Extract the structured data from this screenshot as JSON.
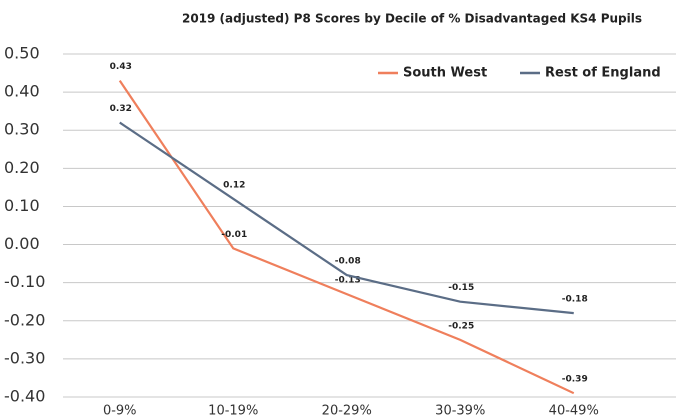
{
  "chart_data": {
    "type": "line",
    "title": "2019 (adjusted) P8 Scores by Decile of % Disadvantaged KS4 Pupils",
    "categories": [
      "0-9%",
      "10-19%",
      "20-29%",
      "30-39%",
      "40-49%"
    ],
    "series": [
      {
        "name": "South West",
        "color": "#ef7f5c",
        "values": [
          0.43,
          -0.01,
          -0.13,
          -0.25,
          -0.39
        ]
      },
      {
        "name": "Rest of England",
        "color": "#5b6d86",
        "values": [
          0.32,
          0.12,
          -0.08,
          -0.15,
          -0.18
        ]
      }
    ],
    "ylim": [
      -0.4,
      0.5
    ],
    "yticks": [
      {
        "value": -0.4,
        "label": "-0.40"
      },
      {
        "value": -0.3,
        "label": "-0.30"
      },
      {
        "value": -0.2,
        "label": "-0.20"
      },
      {
        "value": -0.1,
        "label": "-0.10"
      },
      {
        "value": 0,
        "label": "0.00"
      },
      {
        "value": 0.1,
        "label": "0.10"
      },
      {
        "value": 0.2,
        "label": "0.20"
      },
      {
        "value": 0.3,
        "label": "0.30"
      },
      {
        "value": 0.4,
        "label": "0.40"
      },
      {
        "value": 0.5,
        "label": "0.50"
      }
    ],
    "grid": true,
    "legend": "top-right"
  }
}
